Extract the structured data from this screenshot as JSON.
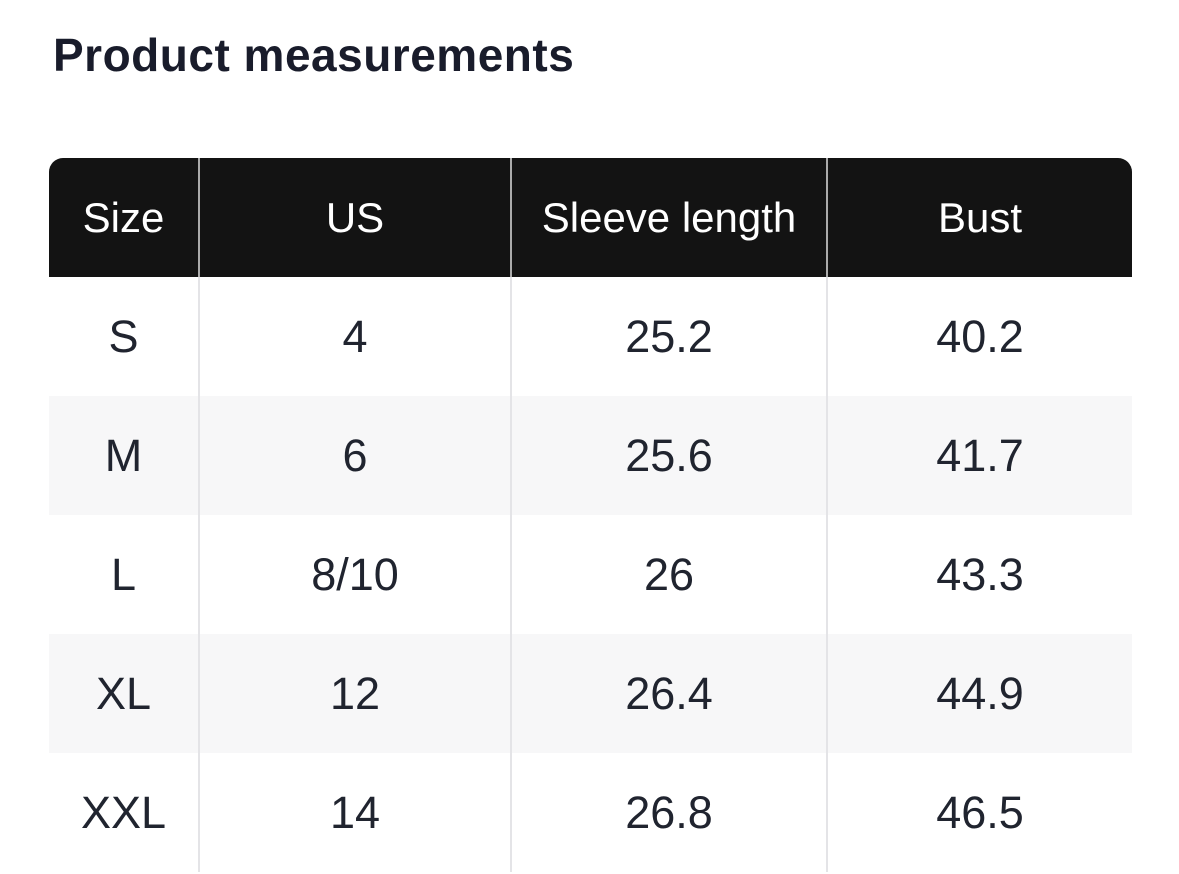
{
  "page": {
    "title": "Product measurements"
  },
  "table": {
    "columns": [
      "Size",
      "US",
      "Sleeve length",
      "Bust"
    ],
    "rows": [
      [
        "S",
        "4",
        "25.2",
        "40.2"
      ],
      [
        "M",
        "6",
        "25.6",
        "41.7"
      ],
      [
        "L",
        "8/10",
        "26",
        "43.3"
      ],
      [
        "XL",
        "12",
        "26.4",
        "44.9"
      ],
      [
        "XXL",
        "14",
        "26.8",
        "46.5"
      ]
    ]
  },
  "colors": {
    "header_bg": "#131313",
    "header_text": "#ffffff",
    "row_alt_bg": "#f7f7f8",
    "row_bg": "#ffffff",
    "body_text": "#20242f",
    "title_text": "#191c2b",
    "divider_body": "#e4e4e7",
    "divider_header": "#ababab"
  }
}
